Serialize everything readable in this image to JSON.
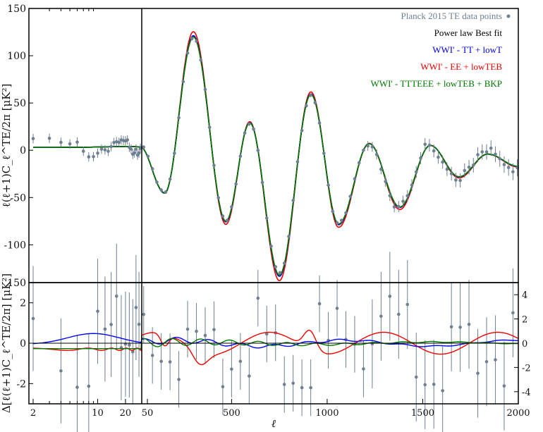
{
  "chart_data": {
    "type": "line",
    "x_scale": "hybrid: log for ell 2-30, linear for ell 30-2000",
    "upper_panel": {
      "ylabel": "ℓ(ℓ+1)C_ℓ^TE/2π [μK²]",
      "ylim": [
        -140,
        150
      ],
      "y_ticks": [
        "150",
        "100",
        "50",
        "0",
        "-50",
        "-100"
      ],
      "series": [
        {
          "name": "Planck 2015 TE data points",
          "color": "#6e7f91",
          "style": "points with error bars"
        },
        {
          "name": "Power law Best fit",
          "color": "#000000",
          "style": "line"
        },
        {
          "name": "WWI' - TT + lowT",
          "color": "#0000ee",
          "style": "line"
        },
        {
          "name": "WWI' - EE + lowTEB",
          "color": "#ee0000",
          "style": "line"
        },
        {
          "name": "WWI' - TTTEEE + lowTEB + BKP",
          "color": "#007700",
          "style": "line"
        }
      ],
      "curve_peaks": [
        {
          "ell": 2,
          "value": 3
        },
        {
          "ell": 20,
          "value": 4
        },
        {
          "ell": 150,
          "value": -45
        },
        {
          "ell": 300,
          "value": 120
        },
        {
          "ell": 470,
          "value": -75
        },
        {
          "ell": 595,
          "value": 29
        },
        {
          "ell": 750,
          "value": -132
        },
        {
          "ell": 915,
          "value": 59
        },
        {
          "ell": 1060,
          "value": -78
        },
        {
          "ell": 1220,
          "value": 7
        },
        {
          "ell": 1380,
          "value": -60
        },
        {
          "ell": 1540,
          "value": 5
        },
        {
          "ell": 1690,
          "value": -28
        },
        {
          "ell": 1840,
          "value": -4
        },
        {
          "ell": 2000,
          "value": -17
        }
      ]
    },
    "lower_panel": {
      "ylabel": "Δ[ℓ(ℓ+1)C_ℓ^TE/2π] [μK²]",
      "ylim_left": [
        -3,
        3
      ],
      "y_ticks_left": [
        "2",
        "0",
        "-2"
      ],
      "ylim_right": [
        -5,
        5
      ],
      "y_ticks_right": [
        "4",
        "2",
        "0",
        "-2",
        "-4"
      ],
      "left_axis_top_label": "150",
      "residual_series": [
        {
          "name": "WWI' - TT + lowT",
          "color": "#0000ee",
          "max_abs": 0.9
        },
        {
          "name": "WWI' - EE + lowTEB",
          "color": "#ee0000",
          "max_abs": 3.5
        },
        {
          "name": "WWI' - TTTEEE + lowTEB + BKP",
          "color": "#007700",
          "max_abs": 0.5
        }
      ]
    },
    "xlabel": "ℓ",
    "x_ticks": [
      "2",
      "10",
      "20",
      "50",
      "500",
      "1000",
      "1500",
      "2000"
    ]
  }
}
